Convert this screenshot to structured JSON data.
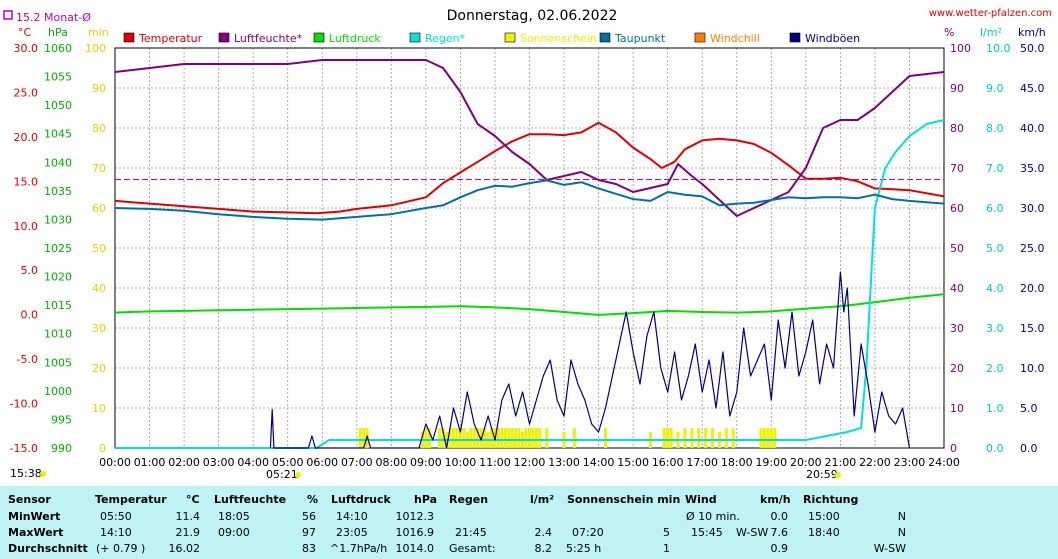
{
  "header": {
    "title": "Donnerstag, 02.06.2022",
    "site": "www.wetter-pfalzen.com",
    "avg_label": "15.2 Monat-Ø",
    "left_units": [
      "°C",
      "hPa",
      "min"
    ],
    "right_units": [
      "%",
      "l/m²",
      "km/h"
    ]
  },
  "bottom": {
    "left_time": "15:38",
    "sunrise": "05:21",
    "sunset": "20:59"
  },
  "legend": [
    {
      "label": "Temperatur",
      "color": "#e00000"
    },
    {
      "label": "Luftfeuchte*",
      "color": "#800080"
    },
    {
      "label": "Luftdruck",
      "color": "#00e000"
    },
    {
      "label": "Regen*",
      "color": "#00e0e0"
    },
    {
      "label": "Sonnenschein",
      "color": "#f0f000"
    },
    {
      "label": "Taupunkt",
      "color": "#0070a0"
    },
    {
      "label": "Windchill",
      "color": "#ff8000"
    },
    {
      "label": "Windböen",
      "color": "#000080"
    }
  ],
  "chart_data": {
    "type": "line",
    "title": "Donnerstag, 02.06.2022",
    "x_ticks": [
      "00:00",
      "01:00",
      "02:00",
      "03:00",
      "04:00",
      "05:00",
      "06:00",
      "07:00",
      "08:00",
      "09:00",
      "10:00",
      "11:00",
      "12:00",
      "13:00",
      "14:00",
      "15:00",
      "16:00",
      "17:00",
      "18:00",
      "19:00",
      "20:00",
      "21:00",
      "22:00",
      "23:00",
      "24:00"
    ],
    "axes": {
      "temperature_c": {
        "ticks": [
          "30.0",
          "25.0",
          "20.0",
          "15.0",
          "10.0",
          "5.0",
          "0.0",
          "-5.0",
          "-10.0",
          "-15.0"
        ],
        "range": [
          -15,
          30
        ]
      },
      "pressure_hpa": {
        "ticks": [
          "1060",
          "1055",
          "1050",
          "1045",
          "1040",
          "1035",
          "1030",
          "1025",
          "1020",
          "1015",
          "1010",
          "1005",
          "1000",
          "995",
          "990"
        ],
        "range": [
          990,
          1060
        ]
      },
      "sunshine_min": {
        "ticks": [
          "100",
          "90",
          "80",
          "70",
          "60",
          "50",
          "40",
          "30",
          "20",
          "10",
          "0"
        ],
        "range": [
          0,
          100
        ]
      },
      "humidity_pct": {
        "ticks": [
          "100",
          "90",
          "80",
          "70",
          "60",
          "50",
          "40",
          "30",
          "20",
          "10",
          "0"
        ],
        "range": [
          0,
          100
        ]
      },
      "rain_lm2": {
        "ticks": [
          "10.0",
          "9.0",
          "8.0",
          "7.0",
          "6.0",
          "5.0",
          "4.0",
          "3.0",
          "2.0",
          "1.0",
          "0.0"
        ],
        "range": [
          0,
          10
        ]
      },
      "wind_kmh": {
        "ticks": [
          "50.0",
          "45.0",
          "40.0",
          "35.0",
          "30.0",
          "25.0",
          "20.0",
          "15.0",
          "10.0",
          "5.0",
          "0.0"
        ],
        "range": [
          0,
          50
        ]
      }
    },
    "month_avg_temperature": 15.2,
    "series": [
      {
        "name": "Temperatur",
        "axis": "temperature_c",
        "x": [
          0,
          1,
          2,
          3,
          4,
          5,
          5.83,
          6.5,
          7,
          8,
          9,
          9.5,
          10,
          10.5,
          11,
          11.5,
          12,
          12.5,
          13,
          13.5,
          14,
          14.5,
          15,
          15.5,
          15.83,
          16.2,
          16.5,
          17,
          17.5,
          18,
          18.5,
          19,
          19.5,
          20,
          20.5,
          21,
          21.5,
          22,
          22.5,
          23,
          24
        ],
        "y": [
          12.8,
          12.5,
          12.2,
          11.9,
          11.6,
          11.5,
          11.4,
          11.6,
          11.9,
          12.3,
          13.2,
          14.8,
          16.0,
          17.2,
          18.4,
          19.5,
          20.3,
          20.3,
          20.2,
          20.5,
          21.6,
          20.5,
          18.8,
          17.5,
          16.5,
          17.2,
          18.6,
          19.6,
          19.8,
          19.6,
          19.2,
          18.2,
          16.8,
          15.3,
          15.3,
          15.4,
          15.0,
          14.2,
          14.1,
          14.0,
          13.3
        ]
      },
      {
        "name": "Luftfeuchte*",
        "axis": "humidity_pct",
        "x": [
          0,
          1,
          2,
          3,
          4,
          5,
          6,
          7,
          8,
          9,
          9.5,
          10,
          10.5,
          11,
          11.5,
          12,
          12.5,
          13,
          13.5,
          14,
          14.5,
          15,
          15.5,
          16,
          16.3,
          16.7,
          17,
          17.5,
          18,
          18.5,
          19,
          19.5,
          20,
          20.5,
          21,
          21.5,
          22,
          22.5,
          23,
          24
        ],
        "y": [
          94,
          95,
          96,
          96,
          96,
          96,
          97,
          97,
          97,
          97,
          95,
          89,
          81,
          78,
          74,
          71,
          67,
          68,
          69,
          67,
          66,
          64,
          65,
          66,
          71,
          68,
          66,
          62,
          58,
          60,
          62,
          64,
          70,
          80,
          82,
          82,
          85,
          89,
          93,
          94
        ]
      },
      {
        "name": "Luftdruck",
        "axis": "pressure_hpa",
        "x": [
          0,
          1,
          2,
          3,
          4,
          5,
          6,
          7,
          8,
          9,
          10,
          11,
          12,
          13,
          14,
          15,
          16,
          17,
          18,
          19,
          20,
          21,
          22,
          23,
          24
        ],
        "y": [
          1013.7,
          1013.9,
          1014.0,
          1014.1,
          1014.2,
          1014.3,
          1014.4,
          1014.5,
          1014.6,
          1014.7,
          1014.8,
          1014.6,
          1014.3,
          1013.8,
          1013.3,
          1013.6,
          1014.0,
          1013.8,
          1013.7,
          1013.9,
          1014.4,
          1014.8,
          1015.5,
          1016.3,
          1016.9
        ]
      },
      {
        "name": "Regen*",
        "axis": "rain_lm2",
        "x": [
          0,
          5.83,
          6.2,
          6.8,
          7.3,
          8,
          10,
          12,
          14,
          16,
          18,
          19.5,
          20,
          20.6,
          21.2,
          21.6,
          21.75,
          22,
          22.3,
          22.6,
          23,
          23.5,
          24
        ],
        "y": [
          0,
          0,
          0.2,
          0.2,
          0.2,
          0.2,
          0.2,
          0.2,
          0.2,
          0.2,
          0.2,
          0.2,
          0.2,
          0.3,
          0.4,
          0.5,
          2.0,
          6.0,
          7.0,
          7.4,
          7.8,
          8.1,
          8.2
        ]
      },
      {
        "name": "Taupunkt",
        "axis": "temperature_c",
        "x": [
          0,
          1,
          2,
          3,
          4,
          5,
          6,
          7,
          8,
          9,
          9.5,
          10,
          10.5,
          11,
          11.5,
          12,
          12.5,
          13,
          13.5,
          14,
          14.5,
          15,
          15.5,
          16,
          16.5,
          17,
          17.5,
          18,
          18.5,
          19,
          19.5,
          20,
          20.5,
          21,
          21.5,
          22,
          22.5,
          23,
          24
        ],
        "y": [
          12.0,
          11.9,
          11.7,
          11.3,
          11.0,
          10.8,
          10.7,
          11.0,
          11.3,
          12.0,
          12.3,
          13.2,
          14.0,
          14.5,
          14.4,
          14.8,
          15.1,
          14.6,
          14.9,
          14.2,
          13.6,
          13.0,
          12.8,
          13.8,
          13.5,
          13.3,
          12.3,
          12.5,
          12.6,
          12.9,
          13.2,
          13.1,
          13.2,
          13.2,
          13.1,
          13.5,
          13.0,
          12.8,
          12.5
        ]
      },
      {
        "name": "Windböen",
        "axis": "wind_kmh",
        "x": [
          4.5,
          4.55,
          4.6,
          5.6,
          5.7,
          5.8,
          7.2,
          7.3,
          7.4,
          8.8,
          9.0,
          9.2,
          9.4,
          9.6,
          9.8,
          10.0,
          10.2,
          10.4,
          10.6,
          10.8,
          11.0,
          11.2,
          11.4,
          11.6,
          11.8,
          12.0,
          12.2,
          12.4,
          12.6,
          12.8,
          13.0,
          13.2,
          13.4,
          13.6,
          13.8,
          14.0,
          14.2,
          14.4,
          14.6,
          14.8,
          15.0,
          15.2,
          15.4,
          15.6,
          15.8,
          16.0,
          16.2,
          16.4,
          16.6,
          16.8,
          17.0,
          17.2,
          17.4,
          17.6,
          17.8,
          18.0,
          18.2,
          18.4,
          18.6,
          18.8,
          19.0,
          19.2,
          19.4,
          19.6,
          19.8,
          20.0,
          20.2,
          20.4,
          20.6,
          20.8,
          21.0,
          21.1,
          21.2,
          21.4,
          21.6,
          21.8,
          22.0,
          22.2,
          22.4,
          22.6,
          22.8,
          23.0
        ],
        "y": [
          0,
          4.8,
          0,
          0,
          1.5,
          0,
          0,
          1.5,
          0,
          0,
          3,
          1,
          4,
          0,
          5,
          2,
          7,
          3,
          1,
          4,
          1,
          6,
          8,
          4,
          7,
          3,
          6,
          9,
          11,
          6,
          4,
          11,
          8,
          6,
          3,
          2,
          5,
          9,
          13,
          17,
          12,
          8,
          14,
          17,
          10,
          7,
          12,
          6,
          9,
          13,
          7,
          11,
          5,
          12,
          4,
          7,
          15,
          9,
          11,
          13,
          6,
          16,
          10,
          17,
          9,
          12,
          16,
          8,
          13,
          10,
          22,
          17,
          20,
          4,
          13,
          8,
          2,
          7,
          4,
          3,
          5,
          0
        ]
      }
    ],
    "sunshine_minutes": {
      "x": [
        7.1,
        7.2,
        7.3,
        8.9,
        9.0,
        9.1,
        9.4,
        9.5,
        9.6,
        9.7,
        9.8,
        9.9,
        10.0,
        10.1,
        10.2,
        10.3,
        10.4,
        10.5,
        10.6,
        10.7,
        10.8,
        10.9,
        11.0,
        11.1,
        11.2,
        11.3,
        11.4,
        11.5,
        11.6,
        11.7,
        11.8,
        11.9,
        12.0,
        12.1,
        12.2,
        12.3,
        12.5,
        13.0,
        13.3,
        14.2,
        15.5,
        15.9,
        16.0,
        16.1,
        16.3,
        16.5,
        16.7,
        16.9,
        17.1,
        17.3,
        17.5,
        17.7,
        17.9,
        18.7,
        18.8,
        18.9,
        19.0,
        19.1
      ],
      "y": [
        5,
        5,
        5,
        4,
        5,
        5,
        5,
        5,
        4,
        5,
        5,
        5,
        5,
        5,
        4,
        5,
        5,
        5,
        5,
        5,
        4,
        5,
        5,
        5,
        5,
        5,
        5,
        5,
        5,
        5,
        4,
        5,
        5,
        5,
        5,
        5,
        5,
        4,
        5,
        5,
        4,
        5,
        5,
        5,
        4,
        5,
        5,
        5,
        5,
        5,
        4,
        5,
        5,
        5,
        5,
        5,
        5,
        5
      ]
    }
  },
  "stats": {
    "headers": [
      "Sensor",
      "Temperatur",
      "°C",
      "Luftfeuchte",
      "%",
      "Luftdruck",
      "hPa",
      "Regen",
      "l/m²",
      "Sonnenschein min",
      "Wind",
      "km/h",
      "Richtung"
    ],
    "row_labels": [
      "MinWert",
      "MaxWert",
      "Durchschnitt"
    ],
    "temperature": {
      "times": [
        "05:50",
        "14:10",
        "(+ 0.79 )"
      ],
      "values": [
        "11.4",
        "21.9",
        "16.02"
      ]
    },
    "humidity": {
      "times": [
        "18:05",
        "09:00",
        ""
      ],
      "values": [
        "56",
        "97",
        "83"
      ]
    },
    "pressure": {
      "times": [
        "14:10",
        "23:05",
        "^1.7hPa/h"
      ],
      "values": [
        "1012.3",
        "1016.9",
        "1014.0"
      ]
    },
    "rain": {
      "times": [
        "",
        "21:45",
        "Gesamt:"
      ],
      "values": [
        "",
        "2.4",
        "8.2"
      ]
    },
    "sunshine": {
      "times": [
        "",
        "07:20",
        "5:25 h"
      ],
      "values": [
        "",
        "5",
        "1"
      ]
    },
    "wind": {
      "times": [
        "Ø 10 min.",
        "15:45",
        ""
      ],
      "dirs": [
        "",
        "W-SW",
        ""
      ],
      "values": [
        "0.0",
        "7.6",
        "0.9"
      ]
    },
    "direction": {
      "times": [
        "15:00",
        "18:40",
        ""
      ],
      "values": [
        "N",
        "N",
        "W-SW"
      ]
    }
  }
}
